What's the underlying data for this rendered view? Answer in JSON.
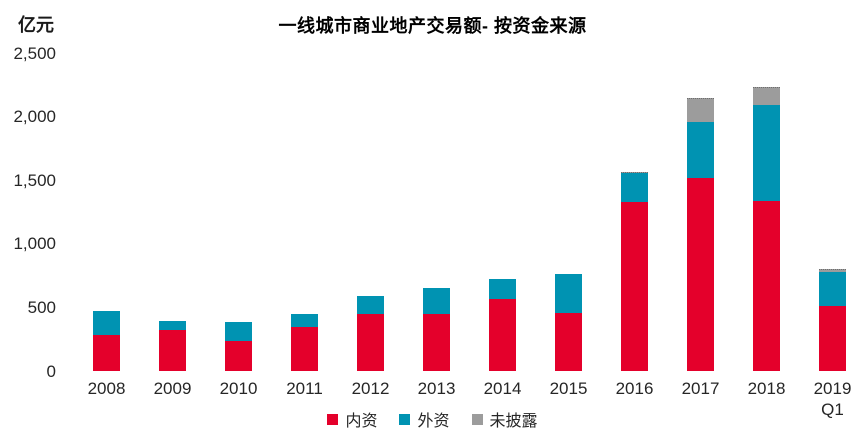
{
  "title": "一线城市商业地产交易额- 按资金来源",
  "y_axis": {
    "unit_label": "亿元",
    "tick_labels": [
      "2,500",
      "2,000",
      "1,500",
      "1,000",
      "500",
      "0"
    ],
    "min": 0,
    "max": 2500,
    "step": 500
  },
  "legend": [
    {
      "label": "内资",
      "color": "#e4002b"
    },
    {
      "label": "外资",
      "color": "#0093b2"
    },
    {
      "label": "未披露",
      "color": "#9c9c9c"
    }
  ],
  "chart_data": {
    "type": "bar",
    "stacked": true,
    "title": "一线城市商业地产交易额- 按资金来源",
    "ylabel": "亿元",
    "ylim": [
      0,
      2500
    ],
    "grid": false,
    "legend_position": "bottom",
    "categories": [
      "2008",
      "2009",
      "2010",
      "2011",
      "2012",
      "2013",
      "2014",
      "2015",
      "2016",
      "2017",
      "2018",
      "2019 Q1"
    ],
    "series": [
      {
        "name": "内资",
        "color": "#e4002b",
        "values": [
          280,
          325,
          235,
          345,
          445,
          445,
          570,
          455,
          1325,
          1515,
          1335,
          510
        ]
      },
      {
        "name": "外资",
        "color": "#0093b2",
        "values": [
          190,
          65,
          150,
          100,
          145,
          210,
          150,
          310,
          230,
          445,
          755,
          265
        ]
      },
      {
        "name": "未披露",
        "color": "#9c9c9c",
        "values": [
          0,
          0,
          0,
          0,
          0,
          0,
          0,
          0,
          10,
          190,
          145,
          30
        ]
      }
    ]
  }
}
